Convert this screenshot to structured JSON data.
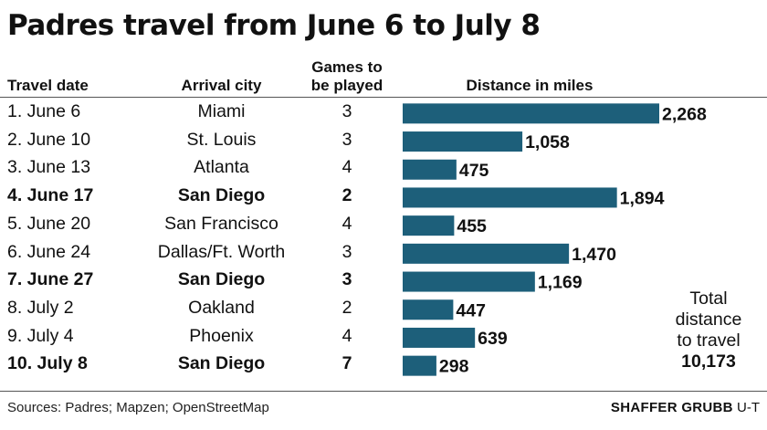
{
  "title": "Padres travel from June 6 to July 8",
  "headers": {
    "date": "Travel date",
    "city": "Arrival city",
    "games_line1": "Games to",
    "games_line2": "be played",
    "distance": "Distance in miles"
  },
  "rows": [
    {
      "date": "1. June 6",
      "city": "Miami",
      "games": "3",
      "bold": false
    },
    {
      "date": "2. June 10",
      "city": "St. Louis",
      "games": "3",
      "bold": false
    },
    {
      "date": "3. June 13",
      "city": "Atlanta",
      "games": "4",
      "bold": false
    },
    {
      "date": "4. June 17",
      "city": "San Diego",
      "games": "2",
      "bold": true
    },
    {
      "date": "5. June 20",
      "city": "San Francisco",
      "games": "4",
      "bold": false
    },
    {
      "date": "6. June 24",
      "city": "Dallas/Ft. Worth",
      "games": "3",
      "bold": false
    },
    {
      "date": "7. June 27",
      "city": "San Diego",
      "games": "3",
      "bold": true
    },
    {
      "date": "8. July 2",
      "city": "Oakland",
      "games": "2",
      "bold": false
    },
    {
      "date": "9. July 4",
      "city": "Phoenix",
      "games": "4",
      "bold": false
    },
    {
      "date": "10. July 8",
      "city": "San Diego",
      "games": "7",
      "bold": true
    }
  ],
  "chart_data": {
    "type": "bar",
    "orientation": "horizontal",
    "title": "Padres travel from June 6 to July 8",
    "xlabel": "Distance in miles",
    "ylabel": "",
    "categories": [
      "1. June 6",
      "2. June 10",
      "3. June 13",
      "4. June 17",
      "5. June 20",
      "6. June 24",
      "7. June 27",
      "8. July 2",
      "9. July 4",
      "10. July 8"
    ],
    "values": [
      2268,
      1058,
      475,
      1894,
      455,
      1470,
      1169,
      447,
      639,
      298
    ],
    "value_labels": [
      "2,268",
      "1,058",
      "475",
      "1,894",
      "455",
      "1,470",
      "1,169",
      "447",
      "639",
      "298"
    ],
    "xlim": [
      0,
      2268
    ],
    "bar_color": "#1d5f7a",
    "grid": false,
    "legend": "none"
  },
  "total": {
    "line1": "Total",
    "line2": "distance",
    "line3": "to travel",
    "value": "10,173"
  },
  "footer": {
    "sources": "Sources: Padres; Mapzen; OpenStreetMap",
    "credit_name": "SHAFFER GRUBB",
    "credit_org": "U-T"
  }
}
